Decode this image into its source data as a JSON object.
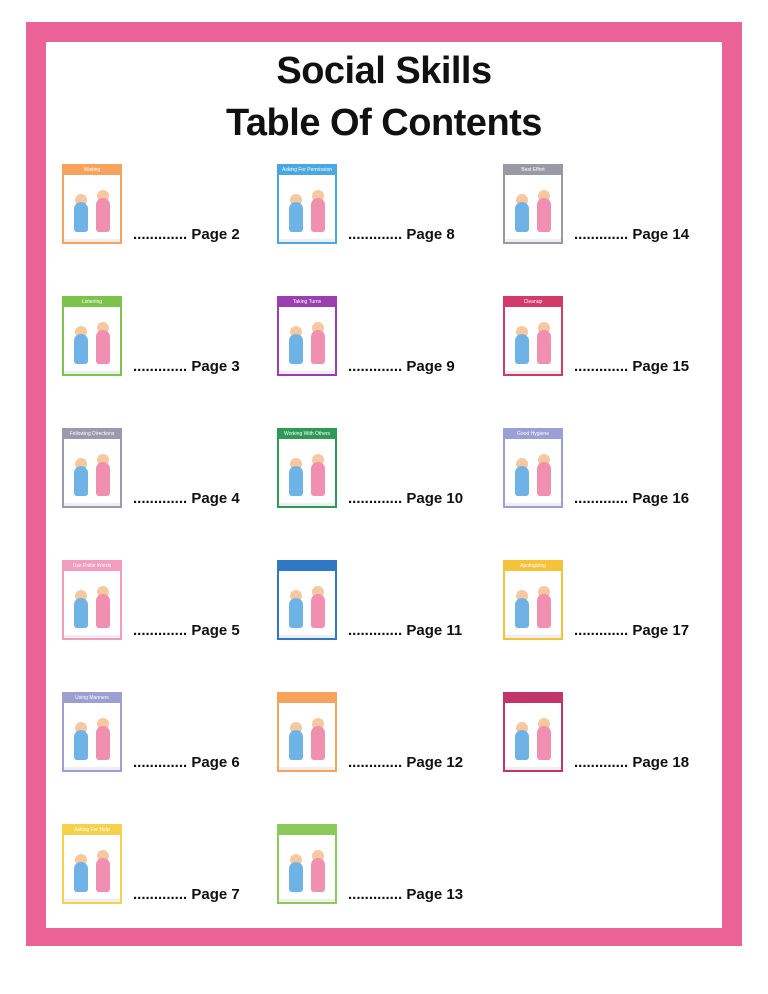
{
  "title_line1": "Social Skills",
  "title_line2": "Table Of Contents",
  "colors": {
    "border": "#ec6497"
  },
  "leader": ".............",
  "columns": [
    [
      {
        "card_title": "Waiting",
        "page": "Page 2",
        "color": "#f7a35c"
      },
      {
        "card_title": "Listening",
        "page": "Page 3",
        "color": "#7dc24b"
      },
      {
        "card_title": "Following Directions",
        "page": "Page 4",
        "color": "#9a9aae"
      },
      {
        "card_title": "Use Polite Words",
        "page": "Page 5",
        "color": "#f29cc0"
      },
      {
        "card_title": "Using Manners",
        "page": "Page 6",
        "color": "#9c9fd0"
      },
      {
        "card_title": "Asking For Help",
        "page": "Page 7",
        "color": "#f6d24a"
      }
    ],
    [
      {
        "card_title": "Asking For Permission",
        "page": "Page 8",
        "color": "#4aa8e0"
      },
      {
        "card_title": "Taking Turns",
        "page": "Page 9",
        "color": "#9b3fb0"
      },
      {
        "card_title": "Working With Others",
        "page": "Page 10",
        "color": "#2e9a55"
      },
      {
        "card_title": "",
        "page": "Page 11",
        "color": "#2f78c4"
      },
      {
        "card_title": "",
        "page": "Page 12",
        "color": "#f7a35c"
      },
      {
        "card_title": "",
        "page": "Page 13",
        "color": "#8cc85a"
      }
    ],
    [
      {
        "card_title": "Best Effort",
        "page": "Page 14",
        "color": "#9a9aa6"
      },
      {
        "card_title": "Cleanup",
        "page": "Page 15",
        "color": "#d23a6a"
      },
      {
        "card_title": "Good Hygiene",
        "page": "Page 16",
        "color": "#9a9fd4"
      },
      {
        "card_title": "Apologizing",
        "page": "Page 17",
        "color": "#f6c23a"
      },
      {
        "card_title": "",
        "page": "Page 18",
        "color": "#c2356a"
      }
    ]
  ]
}
